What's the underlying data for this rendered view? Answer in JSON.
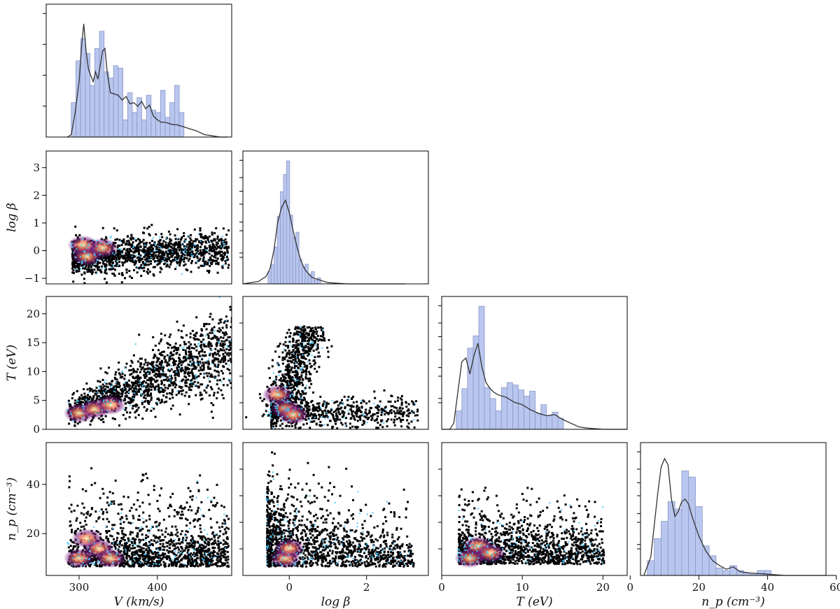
{
  "chart_data": {
    "type": "corner-plot",
    "title": "",
    "variables": [
      {
        "key": "V",
        "label": "V (km/s)",
        "ticks": [
          300,
          400
        ],
        "range": [
          258,
          495
        ]
      },
      {
        "key": "logbeta",
        "label": "log β",
        "ticks": [
          -1,
          0,
          1,
          2,
          3
        ],
        "range": [
          -1.2,
          3.6
        ]
      },
      {
        "key": "T",
        "label": "T (eV)",
        "ticks": [
          0,
          5,
          10,
          15,
          20
        ],
        "range": [
          0,
          23
        ]
      },
      {
        "key": "np",
        "label": "n_p (cm⁻³)",
        "ticks": [
          20,
          40
        ],
        "x_ticks": [
          0,
          20,
          40,
          60
        ],
        "range": [
          3,
          57
        ]
      }
    ],
    "x_tick_labels": {
      "V": [
        "300",
        "400"
      ],
      "logbeta": [
        "0",
        "2"
      ],
      "T": [
        "0",
        "10",
        "20"
      ],
      "np": [
        "0",
        "20",
        "40",
        "60"
      ]
    },
    "y_tick_labels": {
      "logbeta": [
        "3",
        "2",
        "1",
        "0",
        "−1"
      ],
      "T": [
        "20",
        "15",
        "10",
        "5",
        "0"
      ],
      "np": [
        "40",
        "20"
      ]
    },
    "marginals": {
      "V": {
        "hist_edges": [
          290,
          296,
          302,
          308,
          314,
          320,
          326,
          332,
          338,
          344,
          350,
          356,
          362,
          368,
          374,
          380,
          386,
          392,
          398,
          404,
          410,
          416,
          422,
          428,
          434
        ],
        "hist_values": [
          0.28,
          0.62,
          0.8,
          0.68,
          0.42,
          0.72,
          0.86,
          0.53,
          0.48,
          0.58,
          0.56,
          0.14,
          0.36,
          0.2,
          0.32,
          0.14,
          0.34,
          0.22,
          0.2,
          0.38,
          0.16,
          0.28,
          0.42,
          0.2
        ],
        "kde_x": [
          285,
          290,
          295,
          300,
          303,
          306,
          309,
          312,
          315,
          318,
          321,
          324,
          327,
          330,
          333,
          336,
          340,
          345,
          350,
          355,
          360,
          365,
          370,
          375,
          380,
          385,
          390,
          395,
          400,
          405,
          410,
          415,
          420,
          425,
          430,
          435,
          440,
          450,
          460,
          470,
          480,
          490
        ],
        "kde_y": [
          0.0,
          0.02,
          0.2,
          0.45,
          0.72,
          0.92,
          0.7,
          0.55,
          0.5,
          0.45,
          0.53,
          0.47,
          0.58,
          0.7,
          0.72,
          0.52,
          0.36,
          0.35,
          0.34,
          0.3,
          0.33,
          0.27,
          0.28,
          0.25,
          0.29,
          0.23,
          0.26,
          0.17,
          0.14,
          0.12,
          0.12,
          0.11,
          0.1,
          0.1,
          0.09,
          0.08,
          0.07,
          0.05,
          0.02,
          0.01,
          0.0,
          0.0
        ]
      },
      "logbeta": {
        "hist_edges": [
          -0.55,
          -0.47,
          -0.39,
          -0.31,
          -0.23,
          -0.15,
          -0.07,
          0.01,
          0.09,
          0.17,
          0.25,
          0.33,
          0.41,
          0.49,
          0.57,
          0.65,
          0.73,
          0.81
        ],
        "hist_values": [
          0.1,
          0.16,
          0.3,
          0.55,
          0.75,
          0.89,
          1.0,
          0.56,
          0.38,
          0.42,
          0.2,
          0.14,
          0.16,
          0.08,
          0.1,
          0.03,
          0.05
        ],
        "kde_x": [
          -1.2,
          -0.8,
          -0.6,
          -0.5,
          -0.4,
          -0.3,
          -0.2,
          -0.1,
          0.0,
          0.1,
          0.2,
          0.3,
          0.4,
          0.5,
          0.6,
          0.8,
          1.0,
          1.5,
          2.0,
          3.0
        ],
        "kde_y": [
          0.0,
          0.02,
          0.06,
          0.12,
          0.27,
          0.5,
          0.62,
          0.68,
          0.58,
          0.43,
          0.3,
          0.19,
          0.12,
          0.08,
          0.05,
          0.03,
          0.01,
          0.0,
          0.0,
          0.0
        ]
      },
      "T": {
        "hist_edges": [
          1.8,
          2.5,
          3.2,
          3.9,
          4.6,
          5.3,
          6.0,
          6.7,
          7.4,
          8.1,
          8.8,
          9.5,
          10.2,
          10.9,
          11.6,
          12.3,
          13.0,
          13.7,
          14.4,
          15.1
        ],
        "hist_values": [
          0.15,
          0.33,
          0.66,
          0.76,
          1.0,
          0.34,
          0.25,
          0.15,
          0.34,
          0.38,
          0.36,
          0.32,
          0.27,
          0.31,
          0.13,
          0.2,
          0.11,
          0.14,
          0.09
        ],
        "kde_x": [
          0,
          1,
          1.5,
          2,
          2.5,
          3,
          3.5,
          4,
          4.5,
          5,
          5.5,
          6,
          6.5,
          7,
          8,
          9,
          10,
          11,
          12,
          13,
          14,
          15,
          16,
          17,
          18,
          20,
          23
        ],
        "kde_y": [
          0.0,
          0.0,
          0.05,
          0.3,
          0.55,
          0.58,
          0.45,
          0.6,
          0.7,
          0.5,
          0.38,
          0.33,
          0.3,
          0.28,
          0.26,
          0.22,
          0.2,
          0.16,
          0.13,
          0.11,
          0.12,
          0.08,
          0.05,
          0.02,
          0.01,
          0.0,
          0.0
        ]
      },
      "np": {
        "hist_edges": [
          5,
          7,
          9,
          11,
          13,
          15,
          17,
          19,
          21,
          23,
          25,
          27,
          29,
          31,
          33,
          35,
          37,
          39,
          41
        ],
        "hist_values": [
          0.12,
          0.3,
          0.44,
          0.6,
          0.54,
          0.85,
          0.8,
          0.56,
          0.24,
          0.16,
          0.06,
          0.04,
          0.08,
          0.04,
          0.02,
          0.01,
          0.04,
          0.04
        ],
        "kde_x": [
          4,
          6,
          8,
          9,
          10,
          11,
          12,
          13,
          14,
          15,
          16,
          17,
          18,
          20,
          22,
          24,
          26,
          28,
          30,
          32,
          35,
          40,
          45,
          50,
          60
        ],
        "kde_y": [
          0.0,
          0.15,
          0.66,
          0.88,
          0.95,
          0.9,
          0.62,
          0.48,
          0.52,
          0.6,
          0.62,
          0.58,
          0.48,
          0.32,
          0.2,
          0.12,
          0.08,
          0.05,
          0.07,
          0.03,
          0.02,
          0.01,
          0.0,
          0.0,
          0.0
        ]
      }
    },
    "density_panels": [
      {
        "x": "V",
        "y": "logbeta"
      },
      {
        "x": "V",
        "y": "T"
      },
      {
        "x": "logbeta",
        "y": "T"
      },
      {
        "x": "V",
        "y": "np"
      },
      {
        "x": "logbeta",
        "y": "np"
      },
      {
        "x": "T",
        "y": "np"
      }
    ],
    "colors": {
      "hist_fill": "#b9c6ee",
      "hist_edge": "#8c98c8",
      "kde_line": "#333333",
      "density_low": "#000004",
      "density_mid": "#7b2382",
      "density_high": "#fcfdbf",
      "points": "#41c8ff"
    }
  }
}
